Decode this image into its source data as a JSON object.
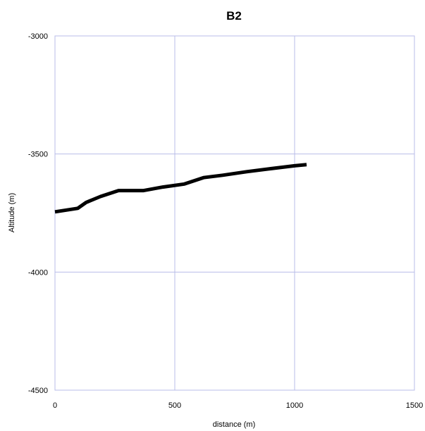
{
  "chart_data": {
    "type": "line",
    "title": "B2",
    "xlabel": "distance (m)",
    "ylabel": "Altitude (m)",
    "xlim": [
      0,
      1500
    ],
    "ylim": [
      -4500,
      -3000
    ],
    "xticks": [
      0,
      500,
      1000,
      1500
    ],
    "yticks": [
      -3000,
      -3500,
      -4000,
      -4500
    ],
    "grid": true,
    "series": [
      {
        "x": [
          0,
          95,
          130,
          190,
          265,
          370,
          450,
          540,
          620,
          700,
          800,
          900,
          1000,
          1050
        ],
        "y": [
          -3745,
          -3730,
          -3705,
          -3680,
          -3655,
          -3655,
          -3640,
          -3627,
          -3600,
          -3590,
          -3575,
          -3562,
          -3550,
          -3545
        ],
        "color": "#000000"
      }
    ]
  }
}
